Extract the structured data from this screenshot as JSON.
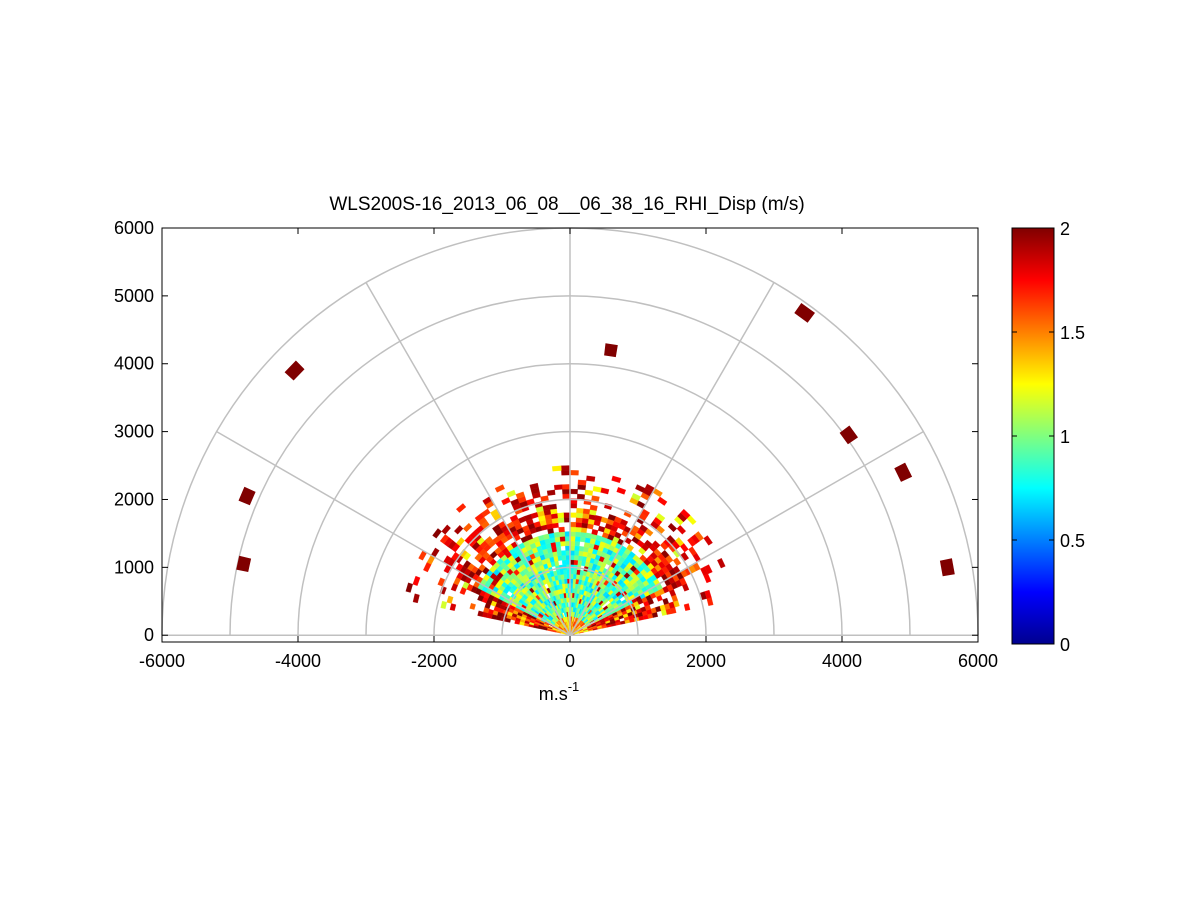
{
  "chart_data": {
    "type": "heatmap",
    "title": "WLS200S-16_2013_06_08__06_38_16_RHI_Disp (m/s)",
    "xlabel": "m.s",
    "xlabel_superscript": "-1",
    "ylabel": "",
    "xlim": [
      -6000,
      6000
    ],
    "ylim": [
      -100,
      6000
    ],
    "xticks": [
      "-6000",
      "-4000",
      "-2000",
      "0",
      "2000",
      "4000",
      "6000"
    ],
    "yticks": [
      "0",
      "1000",
      "2000",
      "3000",
      "4000",
      "5000",
      "6000"
    ],
    "polar_grid": {
      "ring_ranges": [
        1000,
        2000,
        3000,
        4000,
        5000,
        6000
      ],
      "spoke_angles_deg": [
        0,
        30,
        60,
        90,
        120,
        150,
        180
      ]
    },
    "colorbar": {
      "ticks": [
        "0",
        "0.5",
        "1",
        "1.5",
        "2"
      ],
      "range": [
        0,
        2
      ],
      "colormap": "jet",
      "placement": "right"
    },
    "scan_extent": {
      "main_range_max": 2500,
      "elevation_min_deg": 12,
      "elevation_max_deg": 168
    },
    "isolated_cells": [
      {
        "x": -4050,
        "y": 3900,
        "value": 2.0
      },
      {
        "x": -4750,
        "y": 2050,
        "value": 2.0
      },
      {
        "x": -4800,
        "y": 1050,
        "value": 2.0
      },
      {
        "x": 600,
        "y": 4200,
        "value": 2.0
      },
      {
        "x": 3450,
        "y": 4750,
        "value": 2.0
      },
      {
        "x": 4100,
        "y": 2950,
        "value": 2.0
      },
      {
        "x": 4900,
        "y": 2400,
        "value": 2.0
      },
      {
        "x": 5550,
        "y": 1000,
        "value": 2.0
      }
    ],
    "colors": {
      "grid": "#c0c0c0",
      "high": "#800000",
      "low": "#00008f"
    }
  }
}
